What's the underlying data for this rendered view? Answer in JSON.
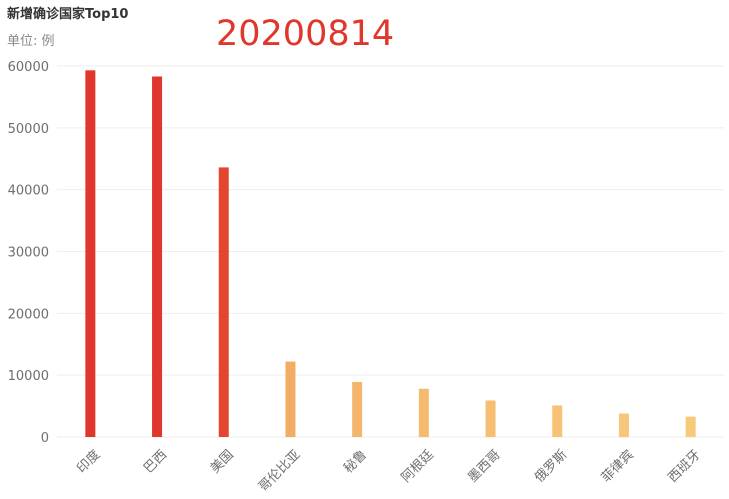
{
  "title": "新增确诊国家Top10",
  "unit_label": "单位: 例",
  "date_label": "20200814",
  "colors": {
    "high": "#e0362c",
    "mid": "#f2ac63",
    "low": "#f8c97a",
    "grid": "#eeeeee",
    "axis_text": "#6e6e6e"
  },
  "chart_data": {
    "type": "bar",
    "title": "新增确诊国家Top10",
    "subtitle": "单位: 例",
    "categories": [
      "印度",
      "巴西",
      "美国",
      "哥伦比亚",
      "秘鲁",
      "阿根廷",
      "墨西哥",
      "俄罗斯",
      "菲律宾",
      "西班牙"
    ],
    "values": [
      59300,
      58300,
      43600,
      12200,
      8900,
      7800,
      5900,
      5100,
      3800,
      3300
    ],
    "bar_colors": [
      "#e0362c",
      "#e0362c",
      "#e4452e",
      "#f2ac63",
      "#f4b66c",
      "#f5ba6e",
      "#f6be72",
      "#f7c275",
      "#f8c67a",
      "#f8c97a"
    ],
    "ylim": [
      0,
      60000
    ],
    "yticks": [
      0,
      10000,
      20000,
      30000,
      40000,
      50000,
      60000
    ],
    "grid": true,
    "xlabel": "",
    "ylabel": ""
  }
}
